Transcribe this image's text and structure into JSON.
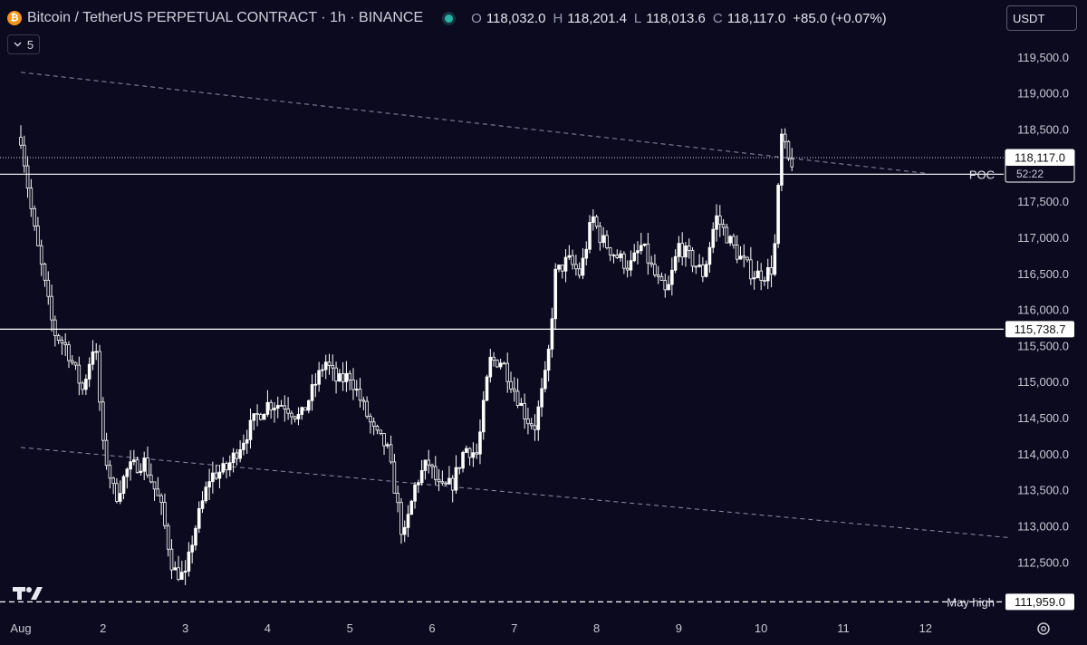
{
  "header": {
    "coin_glyph": "₿",
    "title": "Bitcoin / TetherUS PERPETUAL CONTRACT · 1h · BINANCE",
    "ohlc": [
      {
        "k": "O",
        "v": "118,032.0"
      },
      {
        "k": "H",
        "v": "118,201.4"
      },
      {
        "k": "L",
        "v": "118,013.6"
      },
      {
        "k": "C",
        "v": "118,117.0"
      },
      {
        "k": "",
        "v": "+85.0 (+0.07%)"
      }
    ]
  },
  "indicators_toggle": {
    "icon": "chevron-down-icon",
    "count": "5"
  },
  "currency": {
    "label": "USDT"
  },
  "colors": {
    "background": "#0b0a1f",
    "candle": "#ffffff",
    "text": "#d6d6e0",
    "grid": "#1a1930"
  },
  "chart_data": {
    "type": "candlestick",
    "symbol": "BTCUSDT.P",
    "interval": "1h",
    "exchange": "BINANCE",
    "y_range": [
      111800,
      119800
    ],
    "x_range_days": [
      1.0,
      13.0
    ],
    "y_ticks": [
      "119,500.0",
      "119,000.0",
      "118,500.0",
      "118,000.0",
      "117,500.0",
      "117,000.0",
      "116,500.0",
      "116,000.0",
      "115,500.0",
      "115,000.0",
      "114,500.0",
      "114,000.0",
      "113,500.0",
      "113,000.0",
      "112,500.0"
    ],
    "x_ticks": [
      "Aug",
      "2",
      "3",
      "4",
      "5",
      "6",
      "7",
      "8",
      "9",
      "10",
      "11",
      "12"
    ],
    "price_path": [
      [
        1.0,
        118400
      ],
      [
        1.15,
        117200
      ],
      [
        1.3,
        116300
      ],
      [
        1.4,
        115700
      ],
      [
        1.55,
        115500
      ],
      [
        1.75,
        114900
      ],
      [
        1.9,
        115600
      ],
      [
        2.0,
        114100
      ],
      [
        2.15,
        113400
      ],
      [
        2.3,
        113800
      ],
      [
        2.5,
        113900
      ],
      [
        2.7,
        113300
      ],
      [
        2.85,
        112400
      ],
      [
        3.0,
        112300
      ],
      [
        3.1,
        112900
      ],
      [
        3.3,
        113700
      ],
      [
        3.5,
        113800
      ],
      [
        3.7,
        114200
      ],
      [
        3.85,
        114500
      ],
      [
        4.0,
        114700
      ],
      [
        4.2,
        114700
      ],
      [
        4.4,
        114500
      ],
      [
        4.55,
        114900
      ],
      [
        4.7,
        115300
      ],
      [
        4.85,
        115000
      ],
      [
        5.0,
        115100
      ],
      [
        5.15,
        114700
      ],
      [
        5.3,
        114300
      ],
      [
        5.45,
        114100
      ],
      [
        5.55,
        113500
      ],
      [
        5.65,
        112800
      ],
      [
        5.8,
        113600
      ],
      [
        5.95,
        113900
      ],
      [
        6.1,
        113500
      ],
      [
        6.25,
        113600
      ],
      [
        6.4,
        114100
      ],
      [
        6.55,
        114000
      ],
      [
        6.7,
        115300
      ],
      [
        6.85,
        115300
      ],
      [
        7.0,
        114900
      ],
      [
        7.15,
        114500
      ],
      [
        7.25,
        114400
      ],
      [
        7.4,
        115200
      ],
      [
        7.5,
        116500
      ],
      [
        7.65,
        116700
      ],
      [
        7.8,
        116500
      ],
      [
        7.95,
        117300
      ],
      [
        8.05,
        117000
      ],
      [
        8.2,
        116800
      ],
      [
        8.4,
        116600
      ],
      [
        8.55,
        116900
      ],
      [
        8.7,
        116500
      ],
      [
        8.85,
        116200
      ],
      [
        9.0,
        116900
      ],
      [
        9.15,
        116700
      ],
      [
        9.3,
        116500
      ],
      [
        9.45,
        117300
      ],
      [
        9.55,
        117100
      ],
      [
        9.7,
        116800
      ],
      [
        9.9,
        116500
      ],
      [
        10.05,
        116500
      ],
      [
        10.15,
        116600
      ],
      [
        10.25,
        118400
      ],
      [
        10.35,
        118000
      ],
      [
        10.4,
        118117
      ]
    ],
    "levels": [
      {
        "name": "POC",
        "value": 117886.9,
        "value_label": "117,886.9",
        "style": "solid"
      },
      {
        "name": "",
        "value": 115738.7,
        "value_label": "115,738.7",
        "style": "solid"
      },
      {
        "name": "May high",
        "value": 111959.0,
        "value_label": "111,959.0",
        "style": "dashed"
      }
    ],
    "trendlines": [
      {
        "from": [
          1.0,
          119300
        ],
        "to": [
          12.0,
          117900
        ],
        "style": "dashed"
      },
      {
        "from": [
          1.0,
          114100
        ],
        "to": [
          13.0,
          112850
        ],
        "style": "dashed"
      }
    ],
    "current_price": {
      "value": 118117.0,
      "value_label": "118,117.0",
      "countdown": "52:22"
    }
  }
}
